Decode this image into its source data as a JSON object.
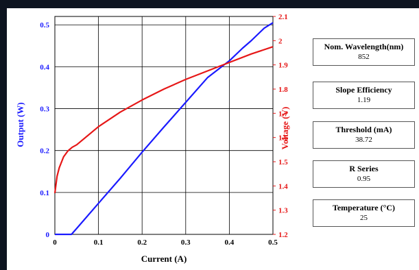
{
  "chart_data": {
    "type": "line",
    "xlabel": "Current (A)",
    "ylabel_left": "Output (W)",
    "ylabel_right": "Voltage (V)",
    "xlim": [
      0,
      0.5
    ],
    "ylim_left": [
      0,
      0.52
    ],
    "ylim_right": [
      1.2,
      2.1
    ],
    "xticks": [
      "0",
      "0.1",
      "0.2",
      "0.3",
      "0.4",
      "0.5"
    ],
    "yticks_left": [
      "0",
      "0.1",
      "0.2",
      "0.3",
      "0.4",
      "0.5"
    ],
    "yticks_right": [
      "1.2",
      "1.3",
      "1.4",
      "1.5",
      "1.6",
      "1.7",
      "1.8",
      "1.9",
      "2",
      "2.1"
    ],
    "grid": true,
    "series": [
      {
        "axis": "left",
        "color": "#1a1aff",
        "x": [
          0,
          0.038,
          0.05,
          0.1,
          0.15,
          0.2,
          0.25,
          0.3,
          0.35,
          0.4,
          0.43,
          0.45,
          0.48,
          0.5
        ],
        "y": [
          0,
          0,
          0.014,
          0.074,
          0.134,
          0.196,
          0.256,
          0.315,
          0.374,
          0.414,
          0.444,
          0.462,
          0.492,
          0.505
        ]
      },
      {
        "axis": "right",
        "color": "#e61717",
        "x": [
          0,
          0.005,
          0.01,
          0.02,
          0.03,
          0.04,
          0.05,
          0.1,
          0.15,
          0.2,
          0.25,
          0.3,
          0.35,
          0.4,
          0.45,
          0.5
        ],
        "y": [
          1.37,
          1.44,
          1.475,
          1.52,
          1.545,
          1.56,
          1.57,
          1.645,
          1.705,
          1.755,
          1.8,
          1.84,
          1.875,
          1.91,
          1.945,
          1.975
        ]
      }
    ]
  },
  "info": [
    {
      "label": "Nom. Wavelength(nm)",
      "value": "852"
    },
    {
      "label": "Slope Efficiency",
      "value": "1.19"
    },
    {
      "label": "Threshold (mA)",
      "value": "38.72"
    },
    {
      "label": "R Series",
      "value": "0.95"
    },
    {
      "label": "Temperature (°C)",
      "value": "25"
    }
  ]
}
